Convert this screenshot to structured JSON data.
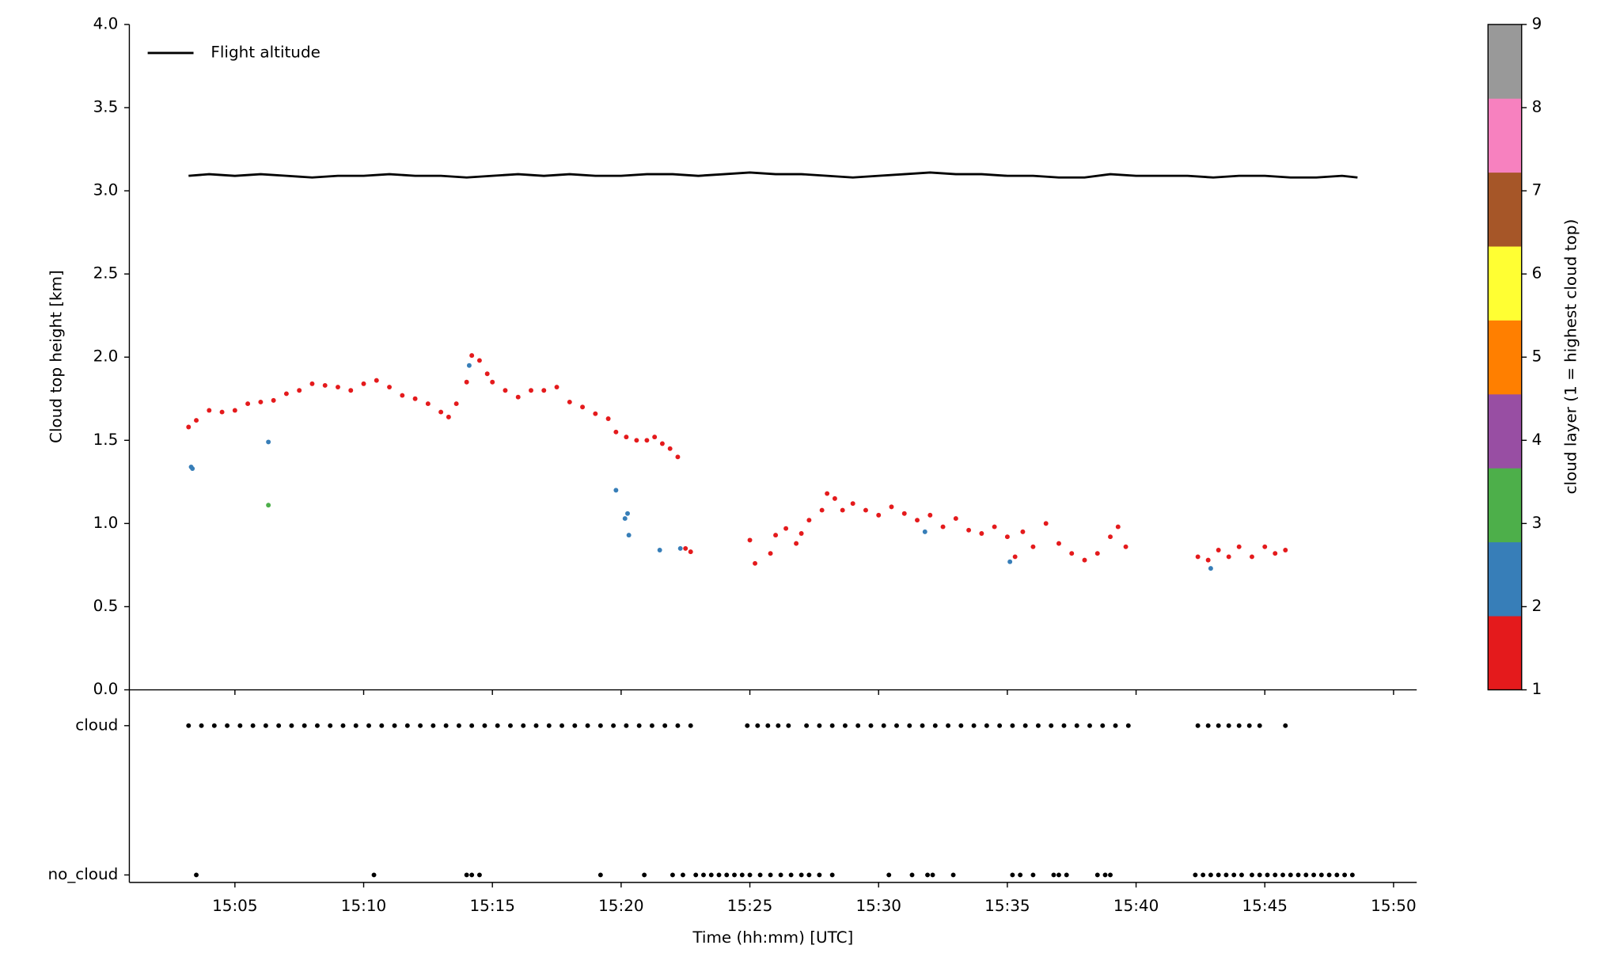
{
  "chart_data": [
    {
      "type": "scatter",
      "ylabel": "Cloud top height [km]",
      "xlim": [
        900.9,
        950.9
      ],
      "ylim": [
        0,
        4
      ],
      "yticks": [
        {
          "value": 0,
          "label": "0.0"
        },
        0.5,
        {
          "value": 1,
          "label": "1.0"
        },
        1.5,
        {
          "value": 2,
          "label": "2.0"
        },
        2.5,
        {
          "value": 3,
          "label": "3.0"
        },
        3.5,
        {
          "value": 4,
          "label": "4.0"
        }
      ],
      "legend": "upper left",
      "series": [
        {
          "type": "line",
          "name": "Flight altitude",
          "color": "#000000",
          "x": [
            903.2,
            904,
            905,
            906,
            907,
            908,
            909,
            910,
            911,
            912,
            913,
            914,
            915,
            916,
            917,
            918,
            919,
            920,
            921,
            922,
            923,
            924,
            925,
            926,
            927,
            928,
            929,
            930,
            931,
            932,
            933,
            934,
            935,
            936,
            937,
            938,
            939,
            940,
            941,
            942,
            943,
            944,
            945,
            946,
            947,
            948,
            948.6
          ],
          "values": [
            3.09,
            3.1,
            3.09,
            3.1,
            3.09,
            3.08,
            3.09,
            3.09,
            3.1,
            3.09,
            3.09,
            3.08,
            3.09,
            3.1,
            3.09,
            3.1,
            3.09,
            3.09,
            3.1,
            3.1,
            3.09,
            3.1,
            3.11,
            3.1,
            3.1,
            3.09,
            3.08,
            3.09,
            3.1,
            3.11,
            3.1,
            3.1,
            3.09,
            3.09,
            3.08,
            3.08,
            3.1,
            3.09,
            3.09,
            3.09,
            3.08,
            3.09,
            3.09,
            3.08,
            3.08,
            3.09,
            3.08
          ]
        },
        {
          "type": "scatter",
          "layer": 1,
          "x": [
            903.2,
            903.5,
            904,
            904.5,
            905,
            905.5,
            906,
            906.5,
            907,
            907.5,
            908,
            908.5,
            909,
            909.5,
            910,
            910.5,
            911,
            911.5,
            912,
            912.5,
            913,
            913.3,
            913.6,
            914,
            914.2,
            914.5,
            914.8,
            915,
            915.5,
            916,
            916.5,
            917,
            917.5,
            918,
            918.5,
            919,
            919.5,
            919.8,
            920.2,
            920.6,
            921,
            921.3,
            921.6,
            921.9,
            922.2,
            922.5,
            922.7,
            925,
            925.2,
            925.8,
            926,
            926.4,
            926.8,
            927,
            927.3,
            927.8,
            928,
            928.3,
            928.6,
            929,
            929.5,
            930,
            930.5,
            931,
            931.5,
            932,
            932.5,
            933,
            933.5,
            934,
            934.5,
            935,
            935.3,
            935.6,
            936,
            936.5,
            937,
            937.5,
            938,
            938.5,
            939,
            939.3,
            939.6,
            942.4,
            942.8,
            943.2,
            943.6,
            944,
            944.5,
            945,
            945.4,
            945.8
          ],
          "values": [
            1.58,
            1.62,
            1.68,
            1.67,
            1.68,
            1.72,
            1.73,
            1.74,
            1.78,
            1.8,
            1.84,
            1.83,
            1.82,
            1.8,
            1.84,
            1.86,
            1.82,
            1.77,
            1.75,
            1.72,
            1.67,
            1.64,
            1.72,
            1.85,
            2.01,
            1.98,
            1.9,
            1.85,
            1.8,
            1.76,
            1.8,
            1.8,
            1.82,
            1.73,
            1.7,
            1.66,
            1.63,
            1.55,
            1.52,
            1.5,
            1.5,
            1.52,
            1.48,
            1.45,
            1.4,
            0.85,
            0.83,
            0.9,
            0.76,
            0.82,
            0.93,
            0.97,
            0.88,
            0.94,
            1.02,
            1.08,
            1.18,
            1.15,
            1.08,
            1.12,
            1.08,
            1.05,
            1.1,
            1.06,
            1.02,
            1.05,
            0.98,
            1.03,
            0.96,
            0.94,
            0.98,
            0.92,
            0.8,
            0.95,
            0.86,
            1.0,
            0.88,
            0.82,
            0.78,
            0.82,
            0.92,
            0.98,
            0.86,
            0.8,
            0.78,
            0.84,
            0.8,
            0.86,
            0.8,
            0.86,
            0.82,
            0.84
          ]
        },
        {
          "type": "scatter",
          "layer": 2,
          "x": [
            903.3,
            903.35,
            906.3,
            914.1,
            919.8,
            920.15,
            920.25,
            920.3,
            921.5,
            922.3,
            931.8,
            935.1,
            942.9
          ],
          "values": [
            1.34,
            1.33,
            1.49,
            1.95,
            1.2,
            1.03,
            1.06,
            0.93,
            0.84,
            0.85,
            0.95,
            0.77,
            0.73
          ]
        },
        {
          "type": "scatter",
          "layer": 3,
          "x": [
            906.3
          ],
          "values": [
            1.11
          ]
        }
      ],
      "colorbar": {
        "label": "cloud layer (1 = highest cloud top)",
        "lim": [
          1,
          9
        ],
        "ticks": [
          1,
          2,
          3,
          4,
          5,
          6,
          7,
          8,
          9
        ],
        "colors": [
          "#e41a1c",
          "#377eb8",
          "#4daf4a",
          "#984ea3",
          "#ff7f00",
          "#ffff33",
          "#a65628",
          "#f781bf",
          "#999999"
        ]
      }
    },
    {
      "type": "scatter",
      "xlabel": "Time (hh:mm) [UTC]",
      "xlim": [
        900.9,
        950.9
      ],
      "xticks": [
        {
          "value": 905,
          "label": "15:05"
        },
        {
          "value": 910,
          "label": "15:10"
        },
        {
          "value": 915,
          "label": "15:15"
        },
        {
          "value": 920,
          "label": "15:20"
        },
        {
          "value": 925,
          "label": "15:25"
        },
        {
          "value": 930,
          "label": "15:30"
        },
        {
          "value": 935,
          "label": "15:35"
        },
        {
          "value": 940,
          "label": "15:40"
        },
        {
          "value": 945,
          "label": "15:45"
        },
        {
          "value": 950,
          "label": "15:50"
        }
      ],
      "ylim": [
        -0.05,
        1.24
      ],
      "yticks": [
        {
          "value": 0,
          "label": "no_cloud"
        },
        {
          "value": 1,
          "label": "cloud"
        }
      ],
      "series": [
        {
          "color": "#000000",
          "x": [
            903.2,
            903.7,
            904.2,
            904.7,
            905.2,
            905.7,
            906.2,
            906.7,
            907.2,
            907.7,
            908.2,
            908.7,
            909.2,
            909.7,
            910.2,
            910.7,
            911.2,
            911.7,
            912.2,
            912.7,
            913.2,
            913.7,
            914.2,
            914.7,
            915.2,
            915.7,
            916.2,
            916.7,
            917.2,
            917.7,
            918.2,
            918.7,
            919.2,
            919.7,
            920.2,
            920.7,
            921.2,
            921.7,
            922.2,
            922.7,
            924.9,
            925.3,
            925.7,
            926.1,
            926.5,
            927.2,
            927.7,
            928.2,
            928.7,
            929.2,
            929.7,
            930.2,
            930.7,
            931.2,
            931.7,
            932.2,
            932.7,
            933.2,
            933.7,
            934.2,
            934.7,
            935.2,
            935.7,
            936.2,
            936.7,
            937.2,
            937.7,
            938.2,
            938.7,
            939.2,
            939.7,
            942.4,
            942.8,
            943.2,
            943.6,
            944.0,
            944.4,
            944.8,
            945.8
          ],
          "values": [
            1,
            1,
            1,
            1,
            1,
            1,
            1,
            1,
            1,
            1,
            1,
            1,
            1,
            1,
            1,
            1,
            1,
            1,
            1,
            1,
            1,
            1,
            1,
            1,
            1,
            1,
            1,
            1,
            1,
            1,
            1,
            1,
            1,
            1,
            1,
            1,
            1,
            1,
            1,
            1,
            1,
            1,
            1,
            1,
            1,
            1,
            1,
            1,
            1,
            1,
            1,
            1,
            1,
            1,
            1,
            1,
            1,
            1,
            1,
            1,
            1,
            1,
            1,
            1,
            1,
            1,
            1,
            1,
            1,
            1,
            1,
            1,
            1,
            1,
            1,
            1,
            1,
            1,
            1
          ]
        },
        {
          "color": "#000000",
          "x": [
            903.5,
            910.4,
            914.0,
            914.2,
            914.5,
            919.2,
            920.9,
            922.0,
            922.4,
            922.9,
            923.2,
            923.5,
            923.8,
            924.1,
            924.4,
            924.7,
            925.0,
            925.4,
            925.8,
            926.2,
            926.6,
            927.0,
            927.3,
            927.7,
            928.2,
            930.4,
            931.3,
            931.9,
            932.1,
            932.9,
            935.2,
            935.5,
            936.0,
            936.8,
            937.0,
            937.3,
            938.5,
            938.8,
            939.0,
            942.3,
            942.6,
            942.9,
            943.2,
            943.5,
            943.8,
            944.1,
            944.5,
            944.8,
            945.1,
            945.4,
            945.7,
            946.0,
            946.3,
            946.6,
            946.9,
            947.2,
            947.5,
            947.8,
            948.1,
            948.4
          ],
          "values": [
            0,
            0,
            0,
            0,
            0,
            0,
            0,
            0,
            0,
            0,
            0,
            0,
            0,
            0,
            0,
            0,
            0,
            0,
            0,
            0,
            0,
            0,
            0,
            0,
            0,
            0,
            0,
            0,
            0,
            0,
            0,
            0,
            0,
            0,
            0,
            0,
            0,
            0,
            0,
            0,
            0,
            0,
            0,
            0,
            0,
            0,
            0,
            0,
            0,
            0,
            0,
            0,
            0,
            0,
            0,
            0,
            0,
            0,
            0,
            0
          ]
        }
      ]
    }
  ]
}
